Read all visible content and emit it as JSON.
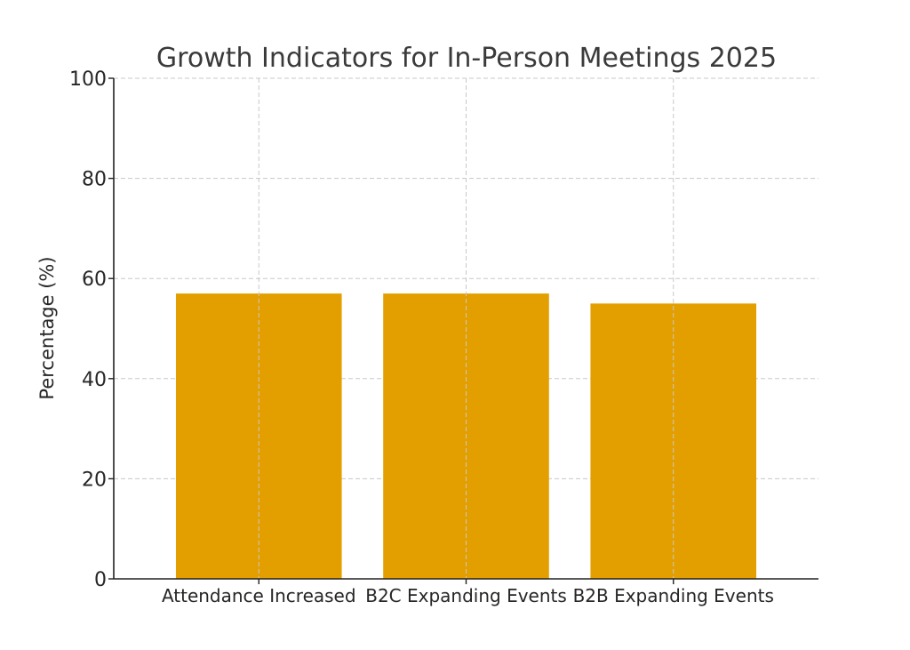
{
  "chart_data": {
    "type": "bar",
    "title": "Growth Indicators for In-Person Meetings 2025",
    "xlabel": "",
    "ylabel": "Percentage (%)",
    "categories": [
      "Attendance Increased",
      "B2C Expanding Events",
      "B2B Expanding Events"
    ],
    "values": [
      57,
      57,
      55
    ],
    "ylim": [
      0,
      100
    ],
    "yticks": [
      0,
      20,
      40,
      60,
      80,
      100
    ],
    "grid": true,
    "bar_color": "#e39f00"
  }
}
